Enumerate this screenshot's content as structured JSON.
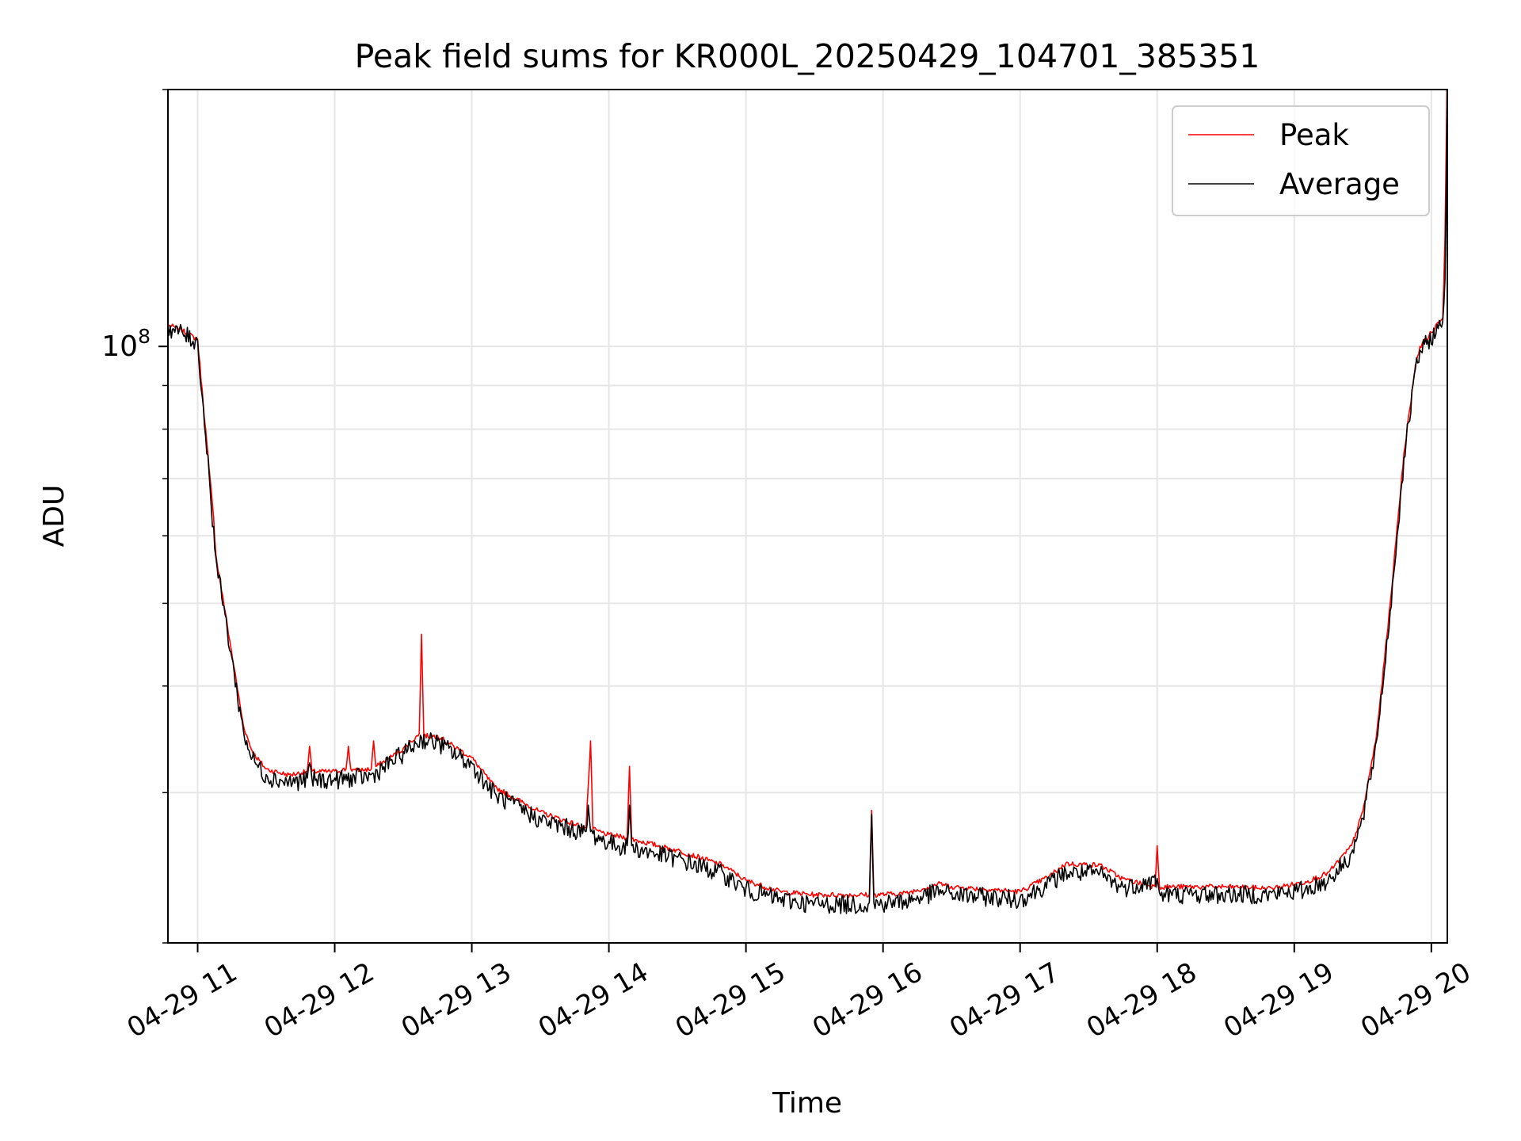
{
  "chart_data": {
    "type": "line",
    "title": "Peak field sums for KR000L_20250429_104701_385351",
    "xlabel": "Time",
    "ylabel": "ADU",
    "yscale": "log",
    "grid": true,
    "legend_position": "top-right",
    "xlim": [
      "04-29 10:47",
      "04-29 20:07"
    ],
    "ylim": [
      20000000,
      200000000
    ],
    "xticks": [
      "04-29 11",
      "04-29 12",
      "04-29 13",
      "04-29 14",
      "04-29 15",
      "04-29 16",
      "04-29 17",
      "04-29 18",
      "04-29 19",
      "04-29 20"
    ],
    "ytick_major": {
      "value": 100000000,
      "base": "10",
      "exp": "8"
    },
    "ytick_minor": [
      20000000,
      30000000,
      40000000,
      50000000,
      60000000,
      70000000,
      80000000,
      90000000,
      200000000
    ],
    "series": [
      {
        "name": "Peak",
        "color": "#ff0000",
        "x": [
          "04-29 10:47",
          "04-29 10:52",
          "04-29 11:00",
          "04-29 11:05",
          "04-29 11:07",
          "04-29 11:08",
          "04-29 11:12",
          "04-29 11:16",
          "04-29 11:20",
          "04-29 11:24",
          "04-29 11:30",
          "04-29 11:40",
          "04-29 11:48",
          "04-29 11:49",
          "04-29 11:50",
          "04-29 12:00",
          "04-29 12:05",
          "04-29 12:06",
          "04-29 12:07",
          "04-29 12:09",
          "04-29 12:16",
          "04-29 12:17",
          "04-29 12:18",
          "04-29 12:30",
          "04-29 12:37",
          "04-29 12:38",
          "04-29 12:39",
          "04-29 12:45",
          "04-29 13:00",
          "04-29 13:10",
          "04-29 13:30",
          "04-29 13:50",
          "04-29 13:51",
          "04-29 13:52",
          "04-29 13:53",
          "04-29 14:00",
          "04-29 14:08",
          "04-29 14:09",
          "04-29 14:10",
          "04-29 14:30",
          "04-29 14:50",
          "04-29 15:00",
          "04-29 15:15",
          "04-29 15:30",
          "04-29 15:54",
          "04-29 15:55",
          "04-29 15:56",
          "04-29 16:10",
          "04-29 16:25",
          "04-29 16:30",
          "04-29 17:00",
          "04-29 17:13",
          "04-29 17:20",
          "04-29 17:35",
          "04-29 17:45",
          "04-29 17:59",
          "04-29 18:00",
          "04-29 18:01",
          "04-29 18:30",
          "04-29 18:50",
          "04-29 19:05",
          "04-29 19:15",
          "04-29 19:25",
          "04-29 19:30",
          "04-29 19:36",
          "04-29 19:42",
          "04-29 19:48",
          "04-29 19:53",
          "04-29 19:55",
          "04-29 20:05",
          "04-29 20:06",
          "04-29 20:07"
        ],
        "y": [
          106000000,
          105000000,
          102000000,
          72000000,
          63000000,
          57000000,
          49000000,
          42000000,
          36000000,
          33500000,
          32000000,
          31500000,
          31800000,
          34000000,
          31800000,
          31800000,
          32000000,
          34000000,
          32000000,
          31900000,
          32000000,
          34500000,
          32200000,
          33800000,
          35200000,
          46000000,
          35000000,
          35000000,
          33000000,
          30500000,
          28500000,
          27300000,
          30600000,
          34500000,
          27200000,
          26800000,
          26600000,
          32200000,
          26500000,
          25700000,
          24700000,
          23700000,
          23000000,
          22800000,
          22800000,
          28600000,
          22800000,
          22900000,
          23500000,
          23300000,
          23000000,
          24000000,
          24800000,
          24700000,
          23800000,
          23300000,
          26000000,
          23300000,
          23300000,
          23200000,
          23600000,
          24200000,
          26000000,
          28500000,
          35000000,
          50000000,
          75000000,
          95000000,
          100000000,
          108000000,
          135000000,
          220000000
        ]
      },
      {
        "name": "Average",
        "color": "#000000",
        "x": [
          "04-29 10:47",
          "04-29 10:52",
          "04-29 11:00",
          "04-29 11:05",
          "04-29 11:08",
          "04-29 11:12",
          "04-29 11:16",
          "04-29 11:20",
          "04-29 11:24",
          "04-29 11:30",
          "04-29 11:40",
          "04-29 11:48",
          "04-29 11:49",
          "04-29 11:50",
          "04-29 12:00",
          "04-29 12:16",
          "04-29 12:30",
          "04-29 12:38",
          "04-29 12:45",
          "04-29 13:00",
          "04-29 13:10",
          "04-29 13:30",
          "04-29 13:50",
          "04-29 13:51",
          "04-29 13:52",
          "04-29 14:00",
          "04-29 14:08",
          "04-29 14:09",
          "04-29 14:10",
          "04-29 14:30",
          "04-29 14:50",
          "04-29 15:00",
          "04-29 15:15",
          "04-29 15:30",
          "04-29 15:54",
          "04-29 15:55",
          "04-29 15:56",
          "04-29 16:10",
          "04-29 16:25",
          "04-29 16:30",
          "04-29 17:00",
          "04-29 17:13",
          "04-29 17:20",
          "04-29 17:35",
          "04-29 17:45",
          "04-29 18:00",
          "04-29 18:01",
          "04-29 18:30",
          "04-29 18:50",
          "04-29 19:05",
          "04-29 19:15",
          "04-29 19:25",
          "04-29 19:30",
          "04-29 19:36",
          "04-29 19:42",
          "04-29 19:48",
          "04-29 19:53",
          "04-29 19:55",
          "04-29 20:05",
          "04-29 20:06",
          "04-29 20:07"
        ],
        "y": [
          105500000,
          104500000,
          101500000,
          71000000,
          56500000,
          48500000,
          41500000,
          35500000,
          33000000,
          31500000,
          31000000,
          31200000,
          32500000,
          31200000,
          31200000,
          31500000,
          33500000,
          34800000,
          34500000,
          32500000,
          30000000,
          28000000,
          27000000,
          29000000,
          27000000,
          26300000,
          26000000,
          29000000,
          26000000,
          25200000,
          24200000,
          23200000,
          22600000,
          22300000,
          22300000,
          28300000,
          22300000,
          22500000,
          23100000,
          22900000,
          22600000,
          23600000,
          24300000,
          24200000,
          23300000,
          23800000,
          22900000,
          22900000,
          22900000,
          23200000,
          23800000,
          25500000,
          28000000,
          34500000,
          49000000,
          74000000,
          94000000,
          99000000,
          107000000,
          120000000,
          200000000
        ]
      }
    ]
  }
}
